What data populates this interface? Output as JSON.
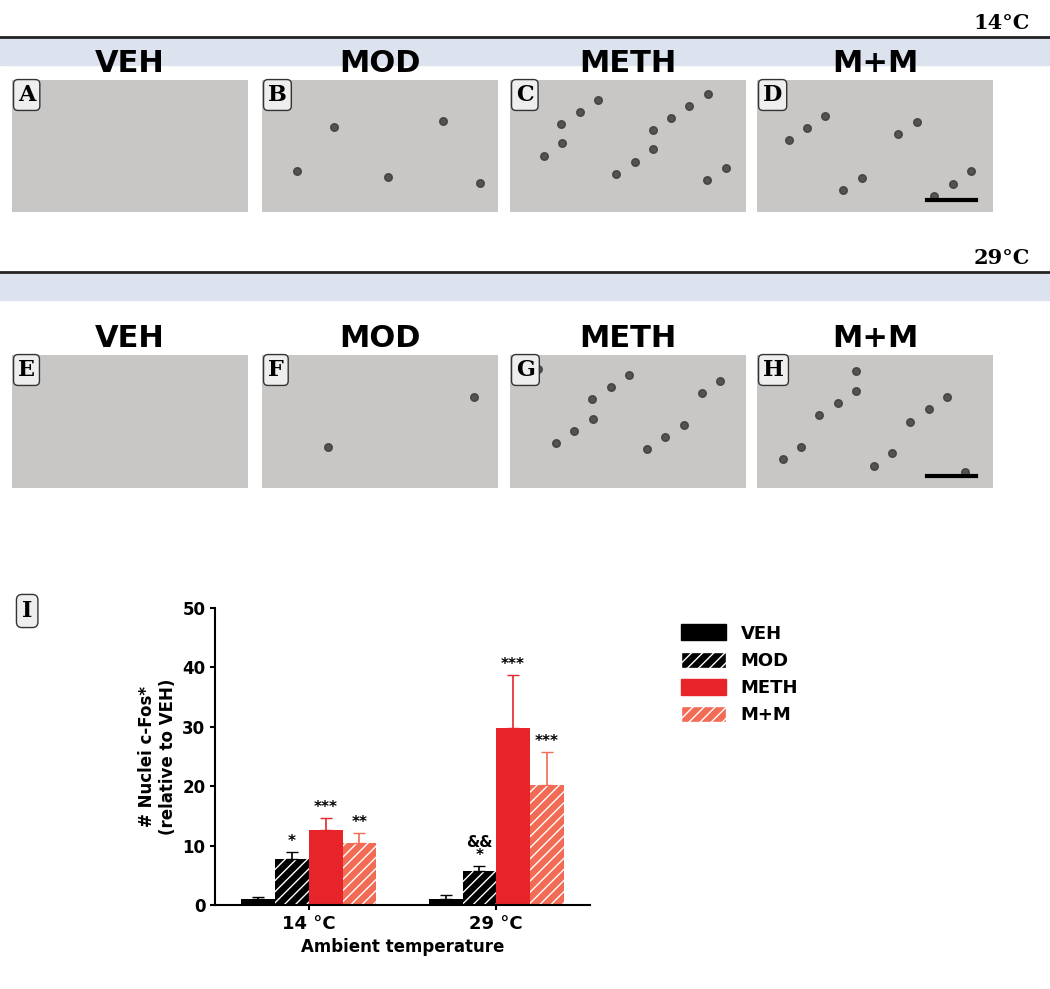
{
  "figure": {
    "rows": [
      {
        "temperature": "14°C",
        "panels": [
          {
            "letter": "A",
            "label": "VEH"
          },
          {
            "letter": "B",
            "label": "MOD"
          },
          {
            "letter": "C",
            "label": "METH"
          },
          {
            "letter": "D",
            "label": "M+M"
          }
        ]
      },
      {
        "temperature": "29°C",
        "panels": [
          {
            "letter": "E",
            "label": "VEH"
          },
          {
            "letter": "F",
            "label": "MOD"
          },
          {
            "letter": "G",
            "label": "METH"
          },
          {
            "letter": "H",
            "label": "M+M"
          }
        ]
      }
    ],
    "chart_letter": "I"
  },
  "chart_data": {
    "type": "bar",
    "x_label": "Ambient temperature",
    "y_label": "# Nuclei c-Fos*\n(relative to VEH)",
    "categories": [
      "14 °C",
      "29 °C"
    ],
    "series": [
      {
        "name": "VEH",
        "color": "#000000",
        "values": [
          1.0,
          1.0
        ],
        "errors": [
          0.3,
          0.6
        ],
        "significance": [
          null,
          null
        ]
      },
      {
        "name": "MOD",
        "color": "#000000",
        "values": [
          7.8,
          5.7
        ],
        "errors": [
          1.2,
          0.8
        ],
        "significance": [
          "*",
          "&&\n*"
        ]
      },
      {
        "name": "METH",
        "color": "#e8242b",
        "values": [
          12.7,
          29.8
        ],
        "errors": [
          1.9,
          9.0
        ],
        "significance": [
          "***",
          "***"
        ]
      },
      {
        "name": "M+M",
        "color": "#f26b55",
        "values": [
          10.5,
          20.2
        ],
        "errors": [
          1.6,
          5.6
        ],
        "significance": [
          "**",
          "***"
        ]
      }
    ],
    "ylim": [
      0,
      50
    ],
    "yticks": [
      0,
      10,
      20,
      30,
      40,
      50
    ],
    "legend": "upper left"
  }
}
